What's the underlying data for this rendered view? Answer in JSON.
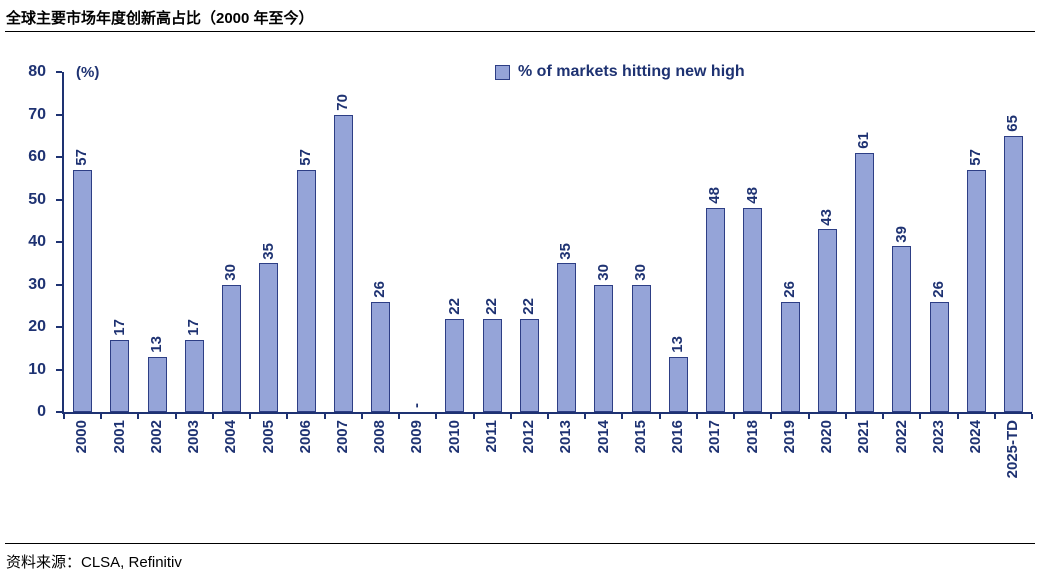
{
  "title": "全球主要市场年度创新高占比（2000 年至今）",
  "source": "资料来源：CLSA, Refinitiv",
  "chart_data": {
    "type": "bar",
    "title": "全球主要市场年度创新高占比（2000 年至今）",
    "unit_label": "(%)",
    "legend": "% of markets hitting new high",
    "legend_position": "top-center",
    "grid": false,
    "categories": [
      "2000",
      "2001",
      "2002",
      "2003",
      "2004",
      "2005",
      "2006",
      "2007",
      "2008",
      "2009",
      "2010",
      "2011",
      "2012",
      "2013",
      "2014",
      "2015",
      "2016",
      "2017",
      "2018",
      "2019",
      "2020",
      "2021",
      "2022",
      "2023",
      "2024",
      "2025-TD"
    ],
    "values": [
      57,
      17,
      13,
      17,
      30,
      35,
      57,
      70,
      26,
      0,
      22,
      22,
      22,
      35,
      30,
      30,
      13,
      48,
      48,
      26,
      43,
      61,
      39,
      26,
      57,
      65
    ],
    "value_labels": [
      "57",
      "17",
      "13",
      "17",
      "30",
      "35",
      "57",
      "70",
      "26",
      "-",
      "22",
      "22",
      "22",
      "35",
      "30",
      "30",
      "13",
      "48",
      "48",
      "26",
      "43",
      "61",
      "39",
      "26",
      "57",
      "65"
    ],
    "ylim": [
      0,
      80
    ],
    "yticks": [
      0,
      10,
      20,
      30,
      40,
      50,
      60,
      70,
      80
    ],
    "bar_fill": "#95A4D8",
    "bar_border": "#2D3E85",
    "text_color": "#1E3272"
  }
}
